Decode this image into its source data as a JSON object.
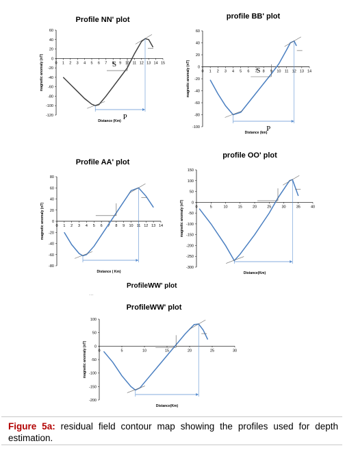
{
  "figure": {
    "caption_label": "Figure 5a:",
    "caption_text": " residual field contour map showing the profiles used for depth estimation.",
    "stray_title": "ProfileWW' plot",
    "stray_dots": "..."
  },
  "chart_data": [
    {
      "id": "nn",
      "type": "line",
      "title": "Profile NN' plot",
      "xlabel": "Distance (Km)",
      "ylabel": "magnetic anomaly (nT)",
      "xlim": [
        0,
        15
      ],
      "ylim": [
        -120,
        60
      ],
      "x_ticks": [
        "0",
        "1",
        "2",
        "3",
        "4",
        "5",
        "6",
        "7",
        "8",
        "9",
        "10",
        "11",
        "12",
        "13",
        "14",
        "15"
      ],
      "y_ticks": [
        "60",
        "40",
        "20",
        "0",
        "-20",
        "-40",
        "-60",
        "-80",
        "-100",
        "-120"
      ],
      "line_color": "#404040",
      "series": [
        {
          "x": [
            1,
            2,
            3,
            4,
            5,
            5.5,
            6,
            7,
            8,
            9,
            10,
            11,
            12,
            12.5,
            13,
            13.6
          ],
          "y": [
            -40,
            -55,
            -70,
            -85,
            -97,
            -100,
            -98,
            -80,
            -60,
            -40,
            -20,
            10,
            36,
            42,
            40,
            24
          ]
        }
      ],
      "annotations": [
        {
          "text": "S"
        },
        {
          "text": "P"
        }
      ]
    },
    {
      "id": "bb",
      "type": "line",
      "title": "profile BB' plot",
      "xlabel": "Distance (km)",
      "ylabel": "magnetic anomaly (nT)",
      "xlim": [
        0,
        14
      ],
      "ylim": [
        -100,
        60
      ],
      "x_ticks": [
        "0",
        "1",
        "2",
        "3",
        "4",
        "5",
        "6",
        "7",
        "8",
        "9",
        "10",
        "11",
        "12",
        "13",
        "14"
      ],
      "y_ticks": [
        "60",
        "40",
        "20",
        "0",
        "-20",
        "-40",
        "-60",
        "-80",
        "-100"
      ],
      "line_color": "#4a7fc1",
      "series": [
        {
          "x": [
            1,
            2,
            3,
            4,
            5,
            6,
            7,
            8,
            9,
            10,
            11,
            11.5,
            12,
            12.3
          ],
          "y": [
            -22,
            -45,
            -65,
            -80,
            -76,
            -60,
            -44,
            -28,
            -12,
            5,
            28,
            40,
            43,
            35
          ]
        }
      ],
      "annotations": [
        {
          "text": "S"
        },
        {
          "text": "P"
        }
      ]
    },
    {
      "id": "aa",
      "type": "line",
      "title": "Profile AA' plot",
      "xlabel": "Distance ( Km)",
      "ylabel": "magnetic anomaly (nT)",
      "xlim": [
        0,
        14
      ],
      "ylim": [
        -80,
        80
      ],
      "x_ticks": [
        "0",
        "1",
        "2",
        "3",
        "4",
        "5",
        "6",
        "7",
        "8",
        "9",
        "10",
        "11",
        "12",
        "13",
        "14"
      ],
      "y_ticks": [
        "80",
        "60",
        "40",
        "20",
        "0",
        "-20",
        "-40",
        "-60",
        "-80"
      ],
      "line_color": "#4a7fc1",
      "series": [
        {
          "x": [
            1,
            2,
            3,
            3.5,
            4,
            5,
            6,
            7,
            8,
            9,
            10,
            11,
            12,
            13
          ],
          "y": [
            -20,
            -42,
            -58,
            -62,
            -60,
            -45,
            -25,
            -5,
            15,
            35,
            55,
            60,
            45,
            25
          ]
        }
      ],
      "annotations": []
    },
    {
      "id": "oo",
      "type": "line",
      "title": "profile OO' plot",
      "xlabel": "Distance(Km)",
      "ylabel": "magnetic anomaly (nT)",
      "xlim": [
        0,
        40
      ],
      "ylim": [
        -300,
        150
      ],
      "x_ticks": [
        "0",
        "5",
        "10",
        "15",
        "20",
        "25",
        "30",
        "35",
        "40"
      ],
      "y_ticks": [
        "150",
        "100",
        "50",
        "0",
        "-50",
        "-100",
        "-150",
        "-200",
        "-250",
        "-300"
      ],
      "line_color": "#4a7fc1",
      "series": [
        {
          "x": [
            1,
            5,
            10,
            13,
            15,
            20,
            25,
            28,
            32,
            33,
            35
          ],
          "y": [
            -30,
            -100,
            -200,
            -270,
            -240,
            -150,
            -50,
            20,
            100,
            105,
            30
          ]
        }
      ],
      "annotations": []
    },
    {
      "id": "ww",
      "type": "line",
      "title": "ProfileWW' plot",
      "xlabel": "Distance(Km)",
      "ylabel": "magnetic anomaly (nT)",
      "xlim": [
        0,
        30
      ],
      "ylim": [
        -200,
        100
      ],
      "x_ticks": [
        "0",
        "5",
        "10",
        "15",
        "20",
        "25",
        "30"
      ],
      "y_ticks": [
        "100",
        "50",
        "0",
        "-50",
        "-100",
        "-150",
        "-200"
      ],
      "line_color": "#4a7fc1",
      "series": [
        {
          "x": [
            1,
            3,
            5,
            7,
            8,
            9,
            11,
            13,
            15,
            17,
            19,
            21,
            22,
            23,
            24
          ],
          "y": [
            -20,
            -60,
            -110,
            -150,
            -163,
            -155,
            -115,
            -75,
            -35,
            5,
            45,
            80,
            82,
            60,
            25
          ]
        }
      ],
      "annotations": []
    }
  ]
}
